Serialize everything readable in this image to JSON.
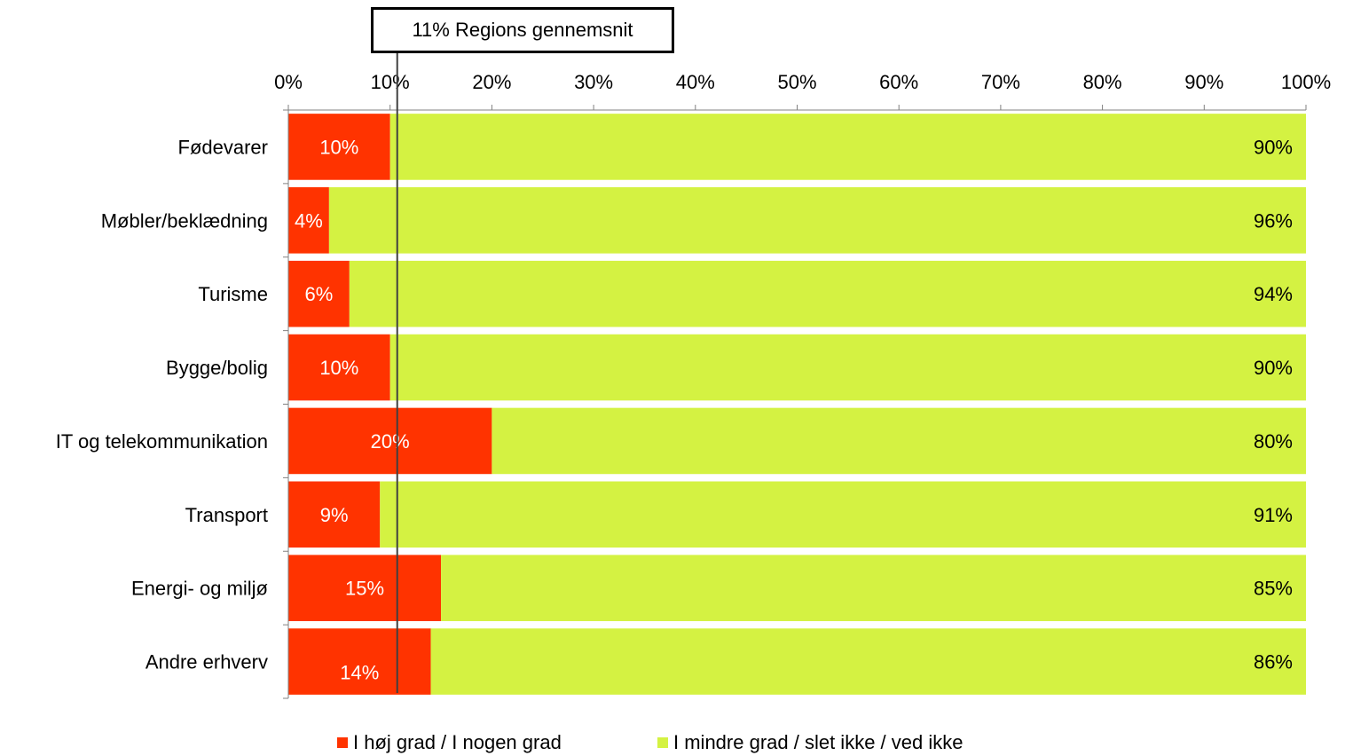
{
  "chart_data": {
    "type": "bar",
    "orientation": "horizontal",
    "stacked": true,
    "categories": [
      "Fødevarer",
      "Møbler/beklædning",
      "Turisme",
      "Bygge/bolig",
      "IT og telekommunikation",
      "Transport",
      "Energi- og miljø",
      "Andre erhverv"
    ],
    "series": [
      {
        "name": "I høj grad / I nogen grad",
        "values": [
          10,
          4,
          6,
          10,
          20,
          9,
          15,
          14
        ],
        "labels": [
          "10%",
          "4%",
          "6%",
          "10%",
          "20%",
          "9%",
          "15%",
          "14%"
        ],
        "color": "#ff3300",
        "label_color": "#ffffff"
      },
      {
        "name": "I mindre grad / slet  ikke / ved ikke",
        "values": [
          90,
          96,
          94,
          90,
          80,
          91,
          85,
          86
        ],
        "labels": [
          "90%",
          "96%",
          "94%",
          "90%",
          "80%",
          "91%",
          "85%",
          "86%"
        ],
        "color": "#d4f242",
        "label_color": "#000000"
      }
    ],
    "xlim": [
      0,
      100
    ],
    "x_ticks": [
      "0%",
      "10%",
      "20%",
      "30%",
      "40%",
      "50%",
      "60%",
      "70%",
      "80%",
      "90%",
      "100%"
    ],
    "x_axis_position": "top",
    "grid": false,
    "legend_position": "bottom",
    "reference_line": {
      "value": 10.7,
      "label": "11% Regions gennemsnit",
      "color": "#404040"
    }
  }
}
